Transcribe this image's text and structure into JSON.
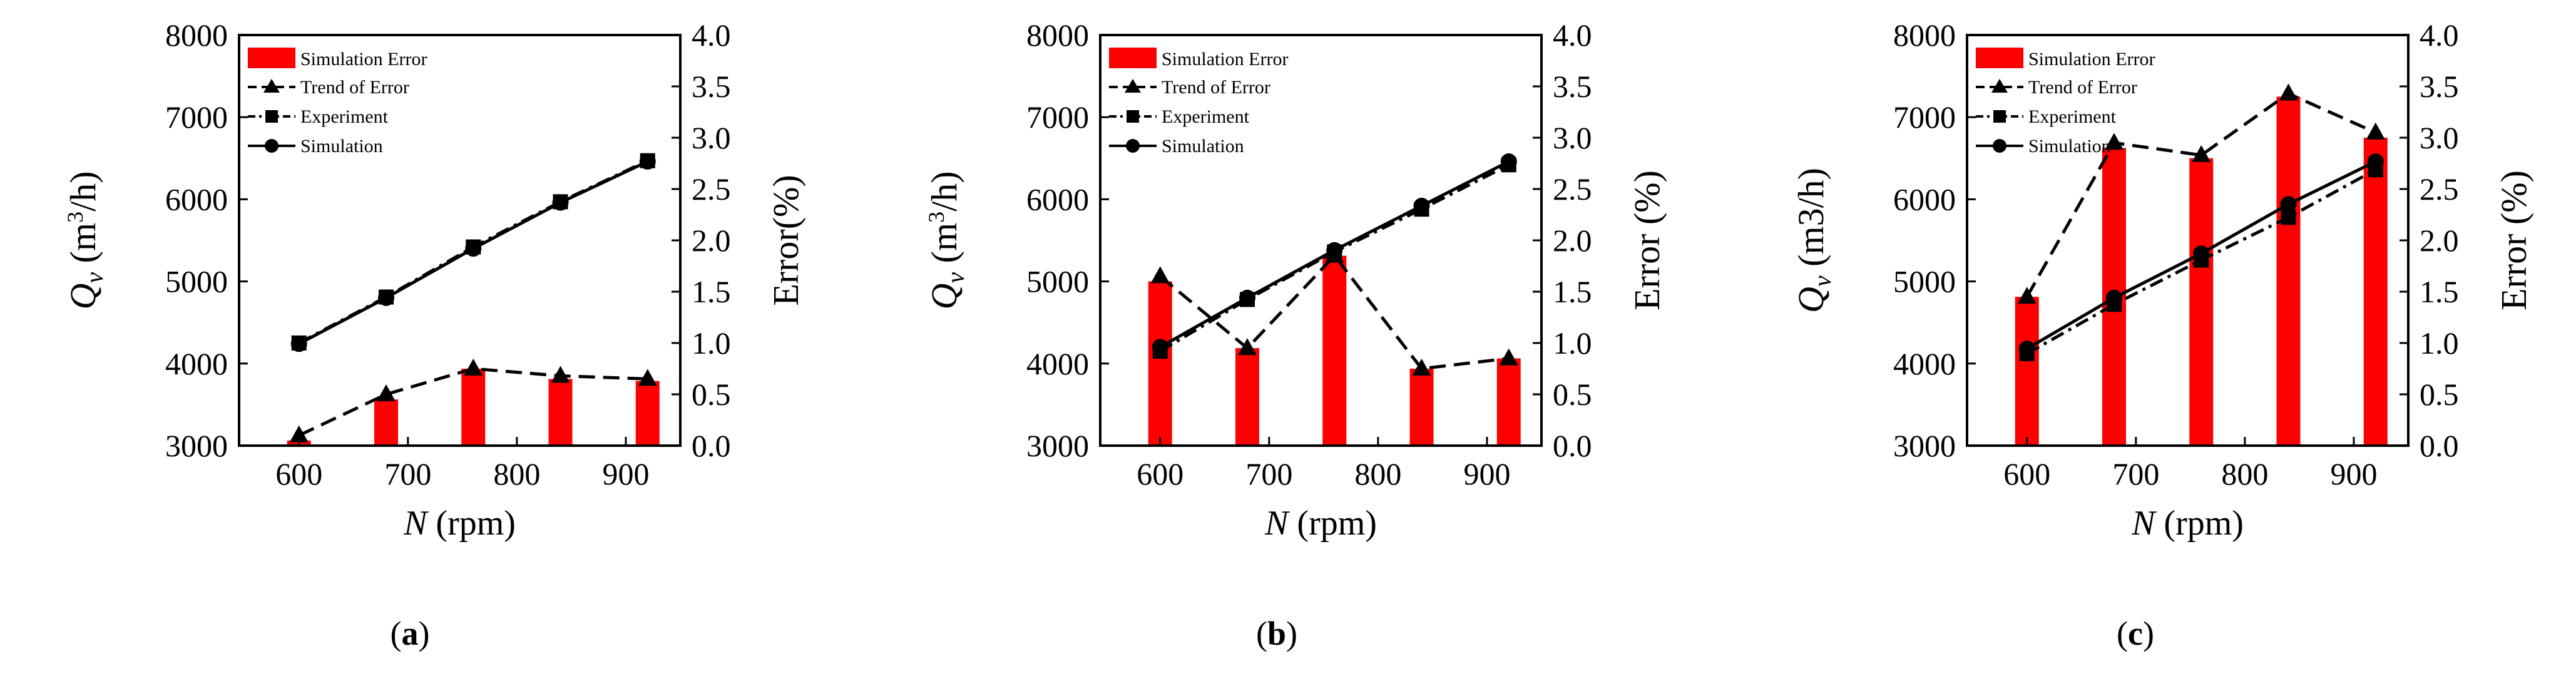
{
  "chart_data": [
    {
      "type": "bar+line",
      "panel_label": "a",
      "categories": [
        600,
        680,
        760,
        840,
        920
      ],
      "bars": {
        "name": "Simulation Error",
        "axis": "right",
        "color": "#ff0000",
        "values": [
          0.05,
          0.45,
          0.75,
          0.65,
          0.63
        ]
      },
      "series": [
        {
          "name": "Trend of Error",
          "axis": "right",
          "marker": "triangle",
          "line": "dash",
          "values": [
            0.1,
            0.5,
            0.75,
            0.68,
            0.65
          ]
        },
        {
          "name": "Experiment",
          "axis": "left",
          "marker": "square",
          "line": "dashdot",
          "values": [
            4250,
            4810,
            5420,
            5970,
            6470
          ]
        },
        {
          "name": "Simulation",
          "axis": "left",
          "marker": "circle",
          "line": "solid",
          "values": [
            4240,
            4800,
            5400,
            5960,
            6460
          ]
        }
      ],
      "xlabel": {
        "var": "N",
        "unit": "(rpm)"
      },
      "ylabel_left": {
        "var": "Q",
        "sub": "v",
        "unit_pre": "(m",
        "sup": "3",
        "unit_post": "/h)"
      },
      "ylabel_right": "Error(%)",
      "xlim": [
        545,
        950
      ],
      "ylim_left": [
        3000,
        8000
      ],
      "ylim_right": [
        0,
        4
      ],
      "xticks": [
        "600",
        "700",
        "800",
        "900"
      ],
      "yticks_left": [
        "3000",
        "4000",
        "5000",
        "6000",
        "7000",
        "8000"
      ],
      "yticks_right": [
        "0.0",
        "0.5",
        "1.0",
        "1.5",
        "2.0",
        "2.5",
        "3.0",
        "3.5",
        "4.0"
      ],
      "legend": "top-left"
    },
    {
      "type": "bar+line",
      "panel_label": "b",
      "categories": [
        600,
        680,
        760,
        840,
        920
      ],
      "bars": {
        "name": "Simulation Error",
        "axis": "right",
        "color": "#ff0000",
        "values": [
          1.6,
          0.95,
          1.85,
          0.75,
          0.85
        ]
      },
      "series": [
        {
          "name": "Trend of Error",
          "axis": "right",
          "marker": "triangle",
          "line": "dash",
          "values": [
            1.65,
            0.95,
            1.85,
            0.75,
            0.85
          ]
        },
        {
          "name": "Experiment",
          "axis": "left",
          "marker": "square",
          "line": "dashdot",
          "values": [
            4150,
            4780,
            5360,
            5880,
            6420
          ]
        },
        {
          "name": "Simulation",
          "axis": "left",
          "marker": "circle",
          "line": "solid",
          "values": [
            4200,
            4800,
            5380,
            5920,
            6460
          ]
        }
      ],
      "xlabel": {
        "var": "N",
        "unit": "(rpm)"
      },
      "ylabel_left": {
        "var": "Q",
        "sub": "v",
        "unit_pre": "(m",
        "sup": "3",
        "unit_post": "/h)"
      },
      "ylabel_right": "Error (%)",
      "xlim": [
        545,
        950
      ],
      "ylim_left": [
        3000,
        8000
      ],
      "ylim_right": [
        0,
        4
      ],
      "xticks": [
        "600",
        "700",
        "800",
        "900"
      ],
      "yticks_left": [
        "3000",
        "4000",
        "5000",
        "6000",
        "7000",
        "8000"
      ],
      "yticks_right": [
        "0.0",
        "0.5",
        "1.0",
        "1.5",
        "2.0",
        "2.5",
        "3.0",
        "3.5",
        "4.0"
      ],
      "legend": "top-left"
    },
    {
      "type": "bar+line",
      "panel_label": "c",
      "categories": [
        600,
        680,
        760,
        840,
        920
      ],
      "bars": {
        "name": "Simulation Error",
        "axis": "right",
        "color": "#ff0000",
        "values": [
          1.45,
          2.9,
          2.8,
          3.4,
          3.0
        ]
      },
      "series": [
        {
          "name": "Trend of Error",
          "axis": "right",
          "marker": "triangle",
          "line": "dash",
          "values": [
            1.45,
            2.95,
            2.83,
            3.43,
            3.05
          ]
        },
        {
          "name": "Experiment",
          "axis": "left",
          "marker": "square",
          "line": "dashdot",
          "values": [
            4120,
            4720,
            5260,
            5780,
            6360
          ]
        },
        {
          "name": "Simulation",
          "axis": "left",
          "marker": "circle",
          "line": "solid",
          "values": [
            4180,
            4800,
            5340,
            5940,
            6460
          ]
        }
      ],
      "xlabel": {
        "var": "N",
        "unit": "(rpm)"
      },
      "ylabel_left": {
        "var": "Q",
        "sub": "v",
        "unit_pre": "(m3/h)",
        "sup": "",
        "unit_post": ""
      },
      "ylabel_right": "Error (%)",
      "xlim": [
        545,
        950
      ],
      "ylim_left": [
        3000,
        8000
      ],
      "ylim_right": [
        0,
        4
      ],
      "xticks": [
        "600",
        "700",
        "800",
        "900"
      ],
      "yticks_left": [
        "3000",
        "4000",
        "5000",
        "6000",
        "7000",
        "8000"
      ],
      "yticks_right": [
        "0.0",
        "0.5",
        "1.0",
        "1.5",
        "2.0",
        "2.5",
        "3.0",
        "3.5",
        "4.0"
      ],
      "legend": "top-left"
    }
  ]
}
